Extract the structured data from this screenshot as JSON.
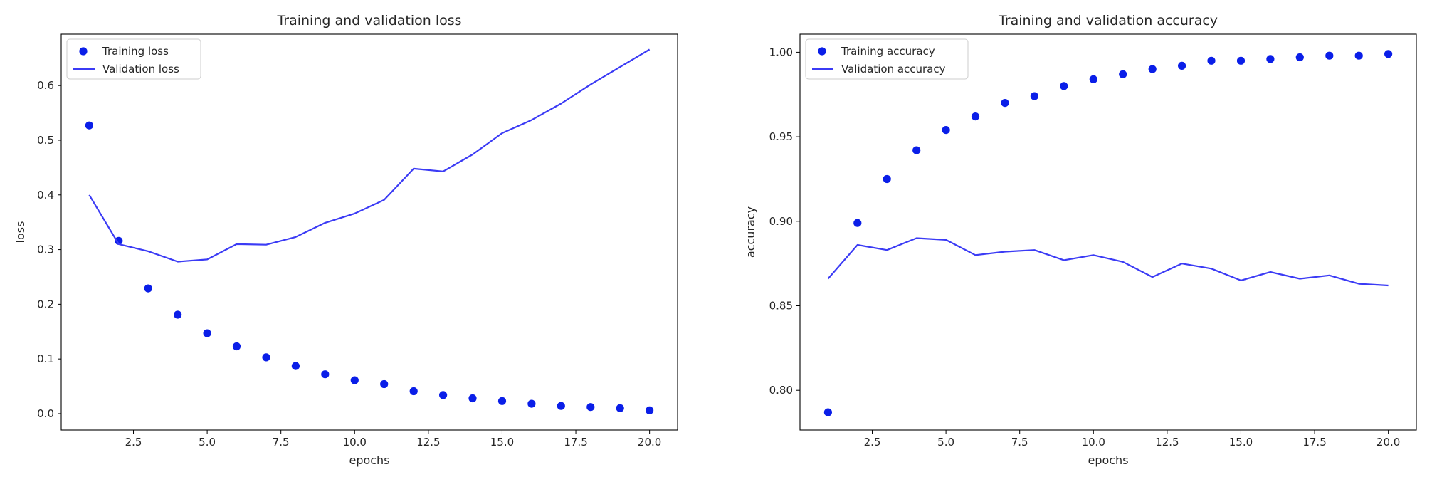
{
  "chart_data": [
    {
      "type": "line",
      "title": "Training and validation loss",
      "xlabel": "epochs",
      "ylabel": "loss",
      "xlim": [
        0.05,
        20.95
      ],
      "ylim": [
        -0.03,
        0.694
      ],
      "xticks": [
        2.5,
        5.0,
        7.5,
        10.0,
        12.5,
        15.0,
        17.5,
        20.0
      ],
      "xtick_labels": [
        "2.5",
        "5.0",
        "7.5",
        "10.0",
        "12.5",
        "15.0",
        "17.5",
        "20.0"
      ],
      "yticks": [
        0.0,
        0.1,
        0.2,
        0.3,
        0.4,
        0.5,
        0.6
      ],
      "ytick_labels": [
        "0.0",
        "0.1",
        "0.2",
        "0.3",
        "0.4",
        "0.5",
        "0.6"
      ],
      "legend_position": "top-left",
      "grid": false,
      "x": [
        1,
        2,
        3,
        4,
        5,
        6,
        7,
        8,
        9,
        10,
        11,
        12,
        13,
        14,
        15,
        16,
        17,
        18,
        19,
        20
      ],
      "series": [
        {
          "name": "Training loss",
          "style": "dots",
          "color": "#0a1ee8",
          "values": [
            0.527,
            0.316,
            0.229,
            0.181,
            0.147,
            0.123,
            0.103,
            0.087,
            0.072,
            0.061,
            0.054,
            0.041,
            0.034,
            0.028,
            0.023,
            0.018,
            0.014,
            0.012,
            0.01,
            0.006
          ]
        },
        {
          "name": "Validation loss",
          "style": "line",
          "color": "#3b3bf5",
          "values": [
            0.4,
            0.31,
            0.297,
            0.278,
            0.282,
            0.31,
            0.309,
            0.323,
            0.349,
            0.366,
            0.391,
            0.448,
            0.443,
            0.474,
            0.513,
            0.537,
            0.567,
            0.602,
            0.634,
            0.666
          ]
        }
      ]
    },
    {
      "type": "line",
      "title": "Training and validation accuracy",
      "xlabel": "epochs",
      "ylabel": "accuracy",
      "xlim": [
        0.05,
        20.95
      ],
      "ylim": [
        0.7765,
        1.0107
      ],
      "xticks": [
        2.5,
        5.0,
        7.5,
        10.0,
        12.5,
        15.0,
        17.5,
        20.0
      ],
      "xtick_labels": [
        "2.5",
        "5.0",
        "7.5",
        "10.0",
        "12.5",
        "15.0",
        "17.5",
        "20.0"
      ],
      "yticks": [
        0.8,
        0.85,
        0.9,
        0.95,
        1.0
      ],
      "ytick_labels": [
        "0.80",
        "0.85",
        "0.90",
        "0.95",
        "1.00"
      ],
      "legend_position": "top-left",
      "grid": false,
      "x": [
        1,
        2,
        3,
        4,
        5,
        6,
        7,
        8,
        9,
        10,
        11,
        12,
        13,
        14,
        15,
        16,
        17,
        18,
        19,
        20
      ],
      "series": [
        {
          "name": "Training accuracy",
          "style": "dots",
          "color": "#0a1ee8",
          "values": [
            0.787,
            0.899,
            0.925,
            0.942,
            0.954,
            0.962,
            0.97,
            0.974,
            0.98,
            0.984,
            0.987,
            0.99,
            0.992,
            0.995,
            0.995,
            0.996,
            0.997,
            0.998,
            0.998,
            0.999
          ]
        },
        {
          "name": "Validation accuracy",
          "style": "line",
          "color": "#3b3bf5",
          "values": [
            0.866,
            0.886,
            0.883,
            0.89,
            0.889,
            0.88,
            0.882,
            0.883,
            0.877,
            0.88,
            0.876,
            0.867,
            0.875,
            0.872,
            0.865,
            0.87,
            0.866,
            0.868,
            0.863,
            0.862
          ]
        }
      ]
    }
  ]
}
